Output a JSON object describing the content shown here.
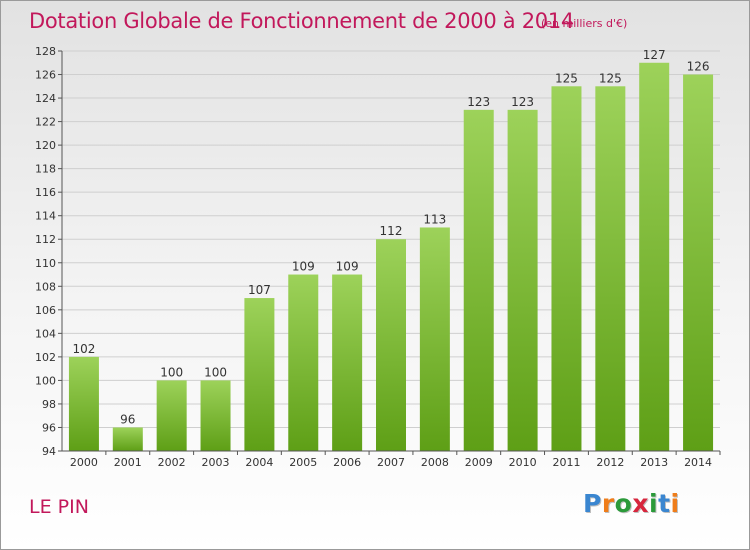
{
  "title": "Dotation Globale de Fonctionnement de 2000 à 2014",
  "subtitle": "(en milliers d'€)",
  "commune": "LE PIN",
  "logo": {
    "letters": [
      "P",
      "r",
      "o",
      "x",
      "i",
      "t",
      "i"
    ],
    "colors": [
      "#3a86d0",
      "#ef7d1a",
      "#2b9a3a",
      "#d7263d",
      "#2b9a3a",
      "#3a86d0",
      "#ef7d1a"
    ]
  },
  "colors": {
    "title": "#c2185b",
    "bar_top": "#9dd25a",
    "bar_bottom": "#5e9f16",
    "grid": "#cfcfcf",
    "text": "#333333"
  },
  "chart_data": {
    "type": "bar",
    "categories": [
      "2000",
      "2001",
      "2002",
      "2003",
      "2004",
      "2005",
      "2006",
      "2007",
      "2008",
      "2009",
      "2010",
      "2011",
      "2012",
      "2013",
      "2014"
    ],
    "values": [
      102,
      96,
      100,
      100,
      107,
      109,
      109,
      112,
      113,
      123,
      123,
      125,
      125,
      127,
      126
    ],
    "title": "Dotation Globale de Fonctionnement de 2000 à 2014",
    "subtitle": "(en milliers d'€)",
    "xlabel": "",
    "ylabel": "",
    "ylim": [
      94,
      128
    ],
    "yticks": [
      94,
      96,
      98,
      100,
      102,
      104,
      106,
      108,
      110,
      112,
      114,
      116,
      118,
      120,
      122,
      124,
      126,
      128
    ],
    "grid": true,
    "data_labels": true
  }
}
